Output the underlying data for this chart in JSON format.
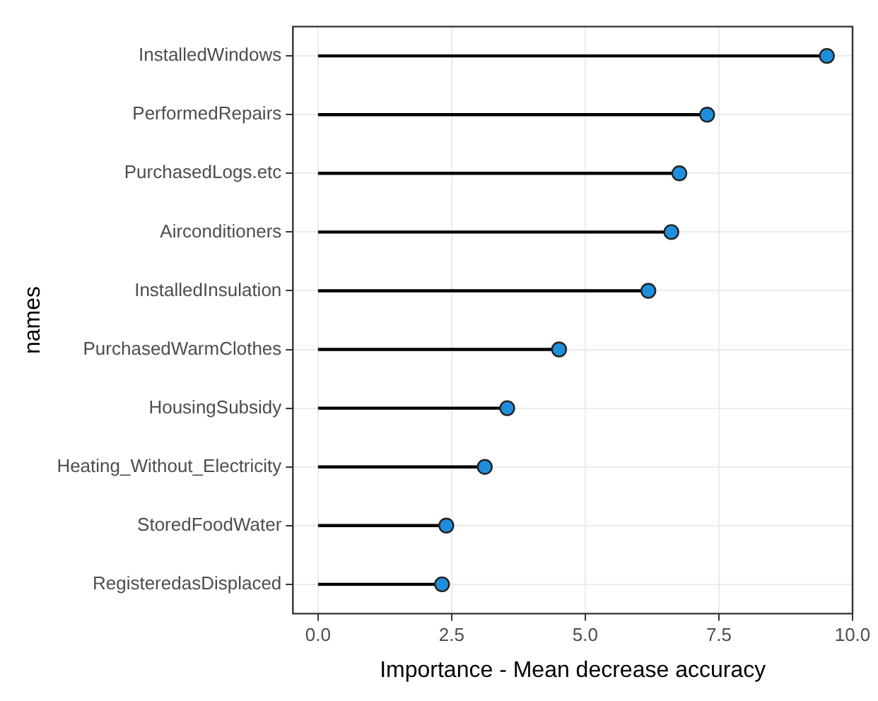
{
  "chart_data": {
    "type": "lollipop",
    "orientation": "horizontal",
    "xlabel": "Importance - Mean decrease accuracy",
    "ylabel": "names",
    "categories": [
      "InstalledWindows",
      "PerformedRepairs",
      "PurchasedLogs.etc",
      "Airconditioners",
      "InstalledInsulation",
      "PurchasedWarmClothes",
      "HousingSubsidy",
      "Heating_Without_Electricity",
      "StoredFoodWater",
      "RegisteredasDisplaced"
    ],
    "values": [
      9.52,
      7.28,
      6.76,
      6.61,
      6.18,
      4.51,
      3.54,
      3.12,
      2.4,
      2.32
    ],
    "color": "#1f8fdc",
    "marker": "circle",
    "xlim": [
      -0.47,
      10.0
    ],
    "xticks": [
      {
        "value": 0,
        "label": "0.0"
      },
      {
        "value": 2.5,
        "label": "2.5"
      },
      {
        "value": 5,
        "label": "5.0"
      },
      {
        "value": 7.5,
        "label": "7.5"
      },
      {
        "value": 10,
        "label": "10.0"
      }
    ],
    "grid": true,
    "legend": false
  }
}
